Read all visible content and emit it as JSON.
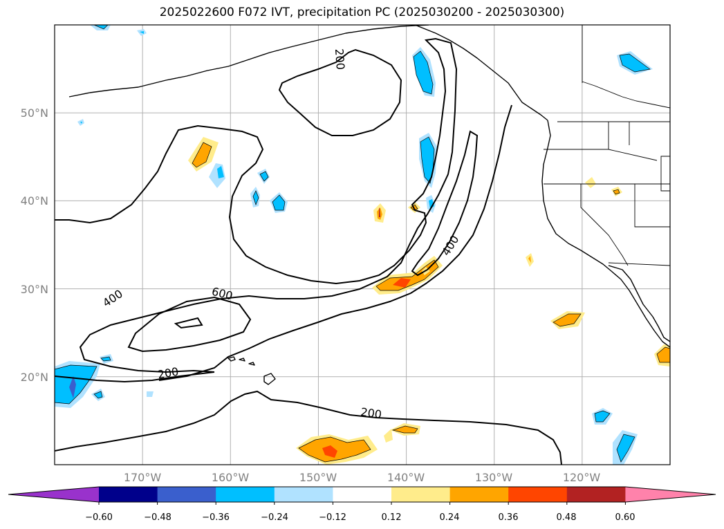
{
  "title": "2025022600 F072 IVT, precipitation PC (2025030200 - 2025030300)",
  "axes": {
    "lat_labels": [
      "50°N",
      "40°N",
      "30°N",
      "20°N"
    ],
    "lon_labels": [
      "170°W",
      "160°W",
      "150°W",
      "140°W",
      "130°W",
      "120°W"
    ],
    "lat_values": [
      50,
      40,
      30,
      20
    ],
    "lon_values": [
      -170,
      -160,
      -150,
      -140,
      -130,
      -120
    ],
    "lon_range": [
      -180,
      -110
    ],
    "lat_range": [
      10,
      60
    ],
    "grid": true
  },
  "contour_labels": [
    "200",
    "400",
    "600",
    "400",
    "200",
    "200"
  ],
  "colorbar": {
    "tick_labels": [
      "−0.60",
      "−0.48",
      "−0.36",
      "−0.24",
      "−0.12",
      "0.12",
      "0.24",
      "0.36",
      "0.48",
      "0.60"
    ],
    "colors": [
      "#9932cc",
      "#00008b",
      "#3a5fcd",
      "#00bfff",
      "#b0e2ff",
      "#ffffff",
      "#ffec8b",
      "#ffa500",
      "#ff4500",
      "#b22222",
      "#ff82ab"
    ]
  }
}
